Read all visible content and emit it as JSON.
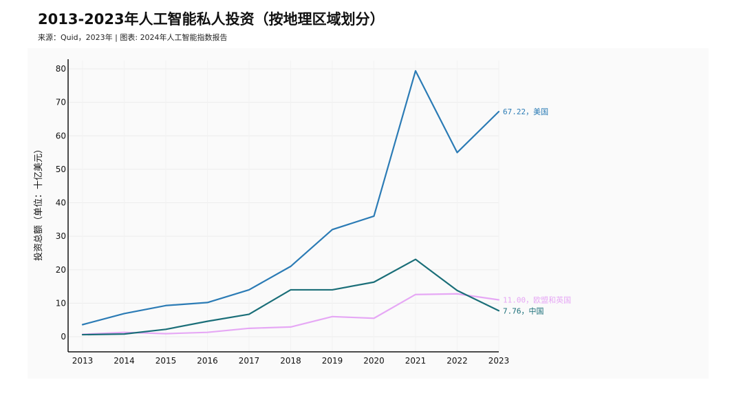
{
  "header": {
    "title": "2013-2023年人工智能私人投资（按地理区域划分）",
    "subtitle": "来源：Quid，2023年 | 图表: 2024年人工智能指数报告"
  },
  "chart_data": {
    "type": "line",
    "title": "2013-2023年人工智能私人投资（按地理区域划分）",
    "ylabel": "投资总额（单位：十亿美元）",
    "xlabel": "",
    "ylim": [
      0,
      80
    ],
    "yticks": [
      0,
      10,
      20,
      30,
      40,
      50,
      60,
      70,
      80
    ],
    "x": [
      2013,
      2014,
      2015,
      2016,
      2017,
      2018,
      2019,
      2020,
      2021,
      2022,
      2023
    ],
    "grid": true,
    "series": [
      {
        "name": "美国",
        "color": "#2b7bb5",
        "values": [
          3.6,
          6.9,
          9.3,
          10.2,
          14.0,
          21.0,
          32.0,
          36.0,
          79.4,
          55.0,
          67.22
        ],
        "end_label": "67.22，美国"
      },
      {
        "name": "欧盟和英国",
        "color": "#e6a8f5",
        "values": [
          0.7,
          1.3,
          0.9,
          1.3,
          2.5,
          2.9,
          6.0,
          5.5,
          12.6,
          12.8,
          11.0
        ],
        "end_label": "11.00，欧盟和英国"
      },
      {
        "name": "中国",
        "color": "#1a6e78",
        "values": [
          0.6,
          0.8,
          2.2,
          4.6,
          6.7,
          14.0,
          14.0,
          16.3,
          23.1,
          13.8,
          7.76
        ],
        "end_label": "7.76，中国"
      }
    ]
  }
}
